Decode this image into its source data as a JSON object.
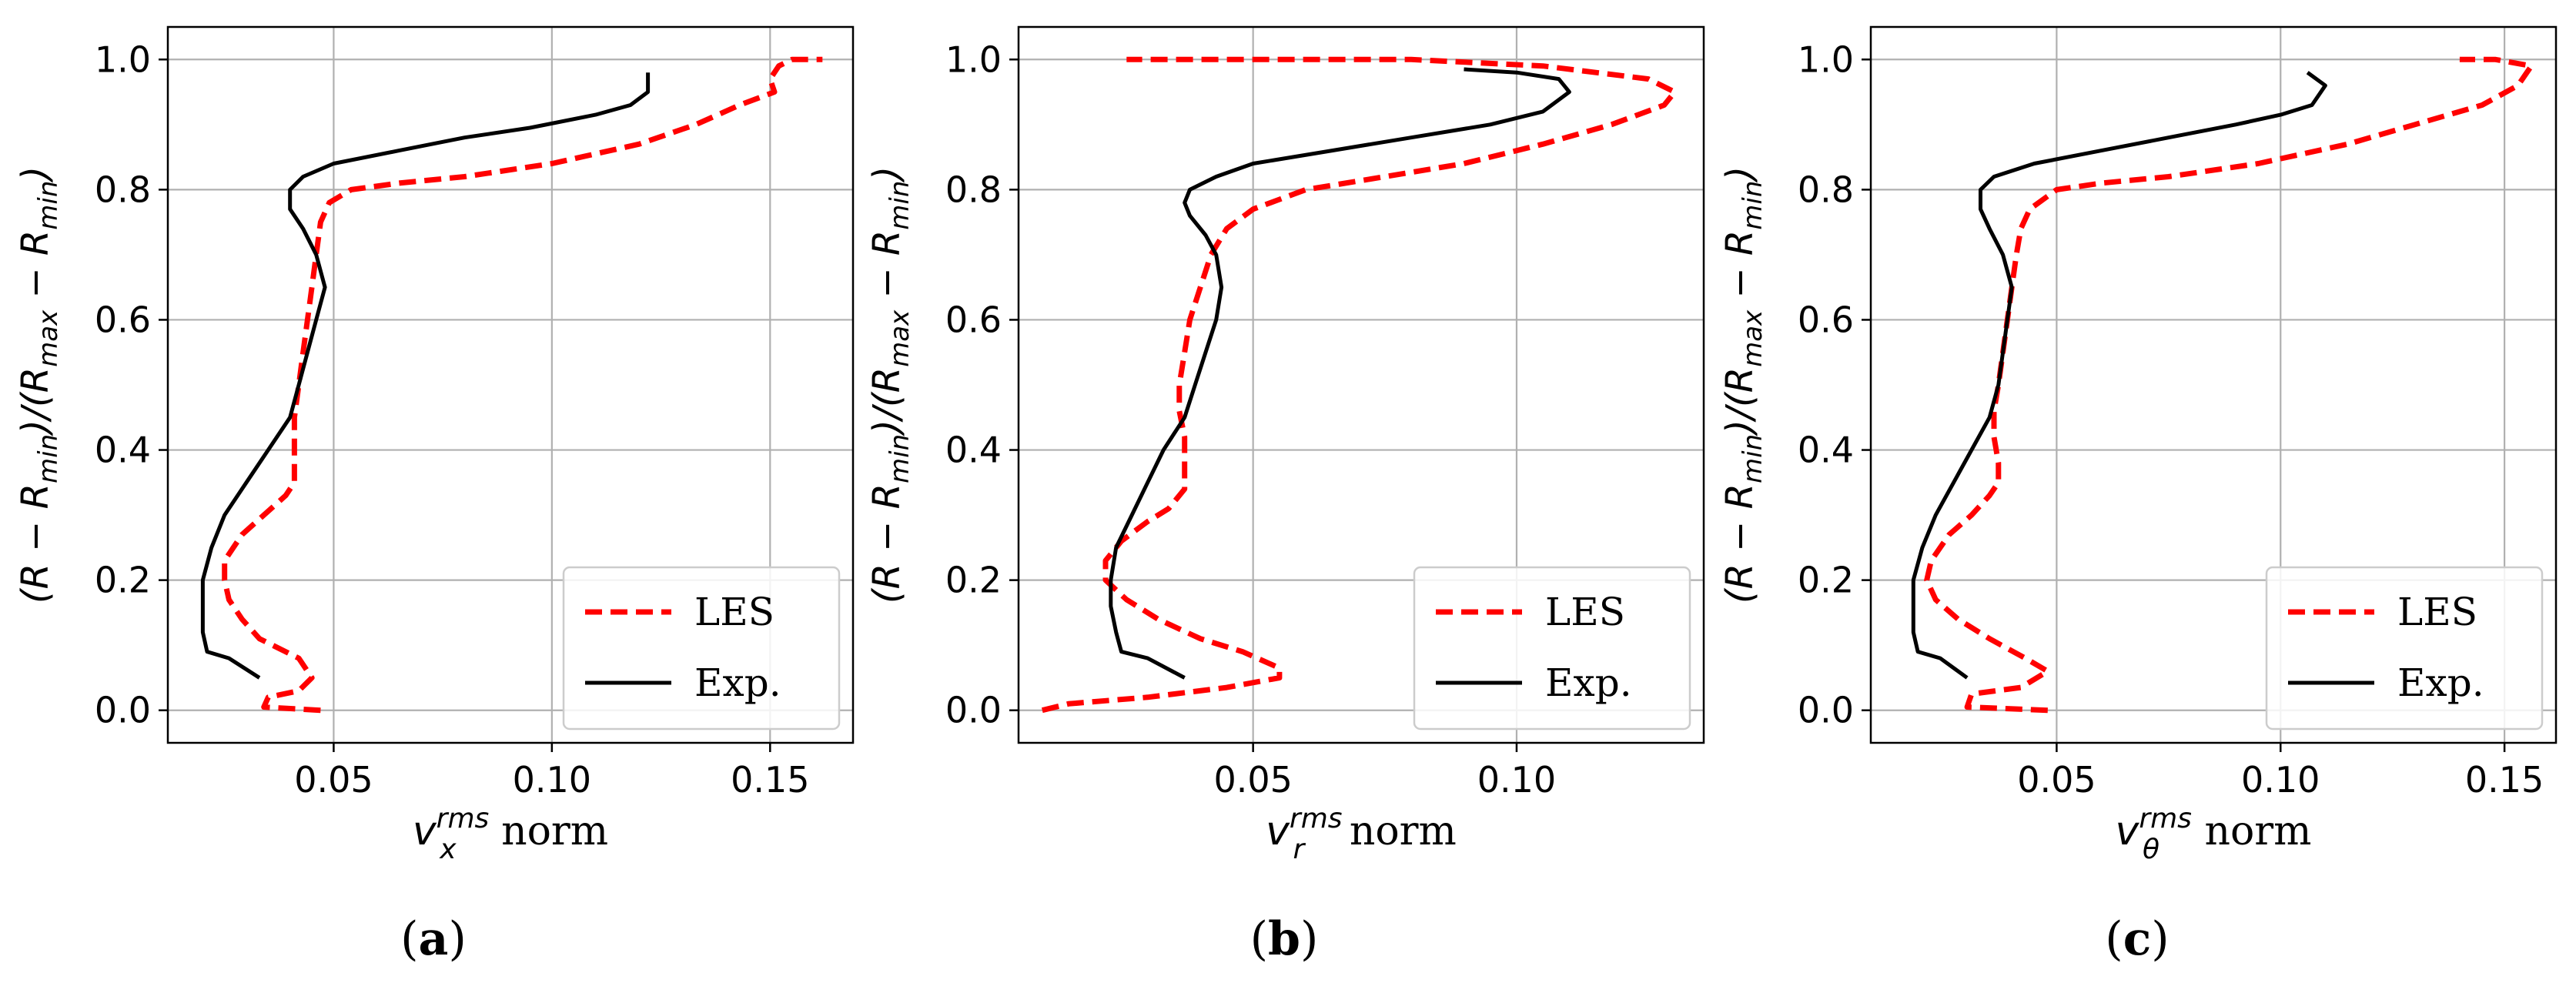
{
  "chart_data": [
    {
      "type": "line",
      "panel_label": "a",
      "caption_open": "(",
      "caption_close": ")",
      "xlabel_symbol": "v",
      "xlabel_sup": "rms",
      "xlabel_sub": "x",
      "xlabel_suffix": " norm",
      "ylabel": "(R − R_min)/(R_max − R_min)",
      "ylabel_parts": {
        "a": "(R − R",
        "a_sub": "min",
        "b": ")/(R",
        "b_sub": "max",
        "c": " − R",
        "c_sub": "min",
        "d": ")"
      },
      "xlim": [
        0.012,
        0.169
      ],
      "ylim": [
        -0.05,
        1.05
      ],
      "xticks": [
        0.05,
        0.1,
        0.15
      ],
      "xtick_labels": [
        "0.05",
        "0.10",
        "0.15"
      ],
      "yticks": [
        0.0,
        0.2,
        0.4,
        0.6,
        0.8,
        1.0
      ],
      "ytick_labels": [
        "0.0",
        "0.2",
        "0.4",
        "0.6",
        "0.8",
        "1.0"
      ],
      "grid": true,
      "legend_position": "lower-right",
      "series": [
        {
          "name": "LES",
          "style": "dashed",
          "color": "#ff0000",
          "points": [
            [
              0.047,
              0.0
            ],
            [
              0.034,
              0.005
            ],
            [
              0.035,
              0.02
            ],
            [
              0.042,
              0.03
            ],
            [
              0.045,
              0.05
            ],
            [
              0.042,
              0.08
            ],
            [
              0.033,
              0.11
            ],
            [
              0.029,
              0.14
            ],
            [
              0.026,
              0.17
            ],
            [
              0.025,
              0.2
            ],
            [
              0.025,
              0.23
            ],
            [
              0.029,
              0.27
            ],
            [
              0.034,
              0.3
            ],
            [
              0.039,
              0.33
            ],
            [
              0.041,
              0.35
            ],
            [
              0.041,
              0.38
            ],
            [
              0.041,
              0.45
            ],
            [
              0.042,
              0.5
            ],
            [
              0.043,
              0.55
            ],
            [
              0.044,
              0.6
            ],
            [
              0.045,
              0.65
            ],
            [
              0.046,
              0.7
            ],
            [
              0.047,
              0.75
            ],
            [
              0.049,
              0.78
            ],
            [
              0.054,
              0.8
            ],
            [
              0.065,
              0.81
            ],
            [
              0.08,
              0.82
            ],
            [
              0.1,
              0.84
            ],
            [
              0.12,
              0.87
            ],
            [
              0.133,
              0.9
            ],
            [
              0.143,
              0.93
            ],
            [
              0.151,
              0.95
            ],
            [
              0.15,
              0.97
            ],
            [
              0.152,
              0.99
            ],
            [
              0.155,
              1.0
            ],
            [
              0.162,
              1.0
            ]
          ]
        },
        {
          "name": "Exp.",
          "style": "solid",
          "color": "#000000",
          "points": [
            [
              0.033,
              0.05
            ],
            [
              0.026,
              0.08
            ],
            [
              0.021,
              0.09
            ],
            [
              0.02,
              0.12
            ],
            [
              0.02,
              0.16
            ],
            [
              0.02,
              0.2
            ],
            [
              0.022,
              0.25
            ],
            [
              0.025,
              0.3
            ],
            [
              0.03,
              0.35
            ],
            [
              0.035,
              0.4
            ],
            [
              0.04,
              0.45
            ],
            [
              0.042,
              0.5
            ],
            [
              0.044,
              0.55
            ],
            [
              0.046,
              0.6
            ],
            [
              0.048,
              0.65
            ],
            [
              0.046,
              0.7
            ],
            [
              0.043,
              0.74
            ],
            [
              0.04,
              0.77
            ],
            [
              0.04,
              0.8
            ],
            [
              0.043,
              0.82
            ],
            [
              0.05,
              0.84
            ],
            [
              0.065,
              0.86
            ],
            [
              0.08,
              0.88
            ],
            [
              0.095,
              0.895
            ],
            [
              0.11,
              0.915
            ],
            [
              0.118,
              0.93
            ],
            [
              0.122,
              0.95
            ],
            [
              0.122,
              0.98
            ]
          ]
        }
      ]
    },
    {
      "type": "line",
      "panel_label": "b",
      "caption_open": "(",
      "caption_close": ")",
      "xlabel_symbol": "v",
      "xlabel_sup": "rms",
      "xlabel_sub": "r",
      "xlabel_suffix": " norm",
      "ylabel": "(R − R_min)/(R_max − R_min)",
      "ylabel_parts": {
        "a": "(R − R",
        "a_sub": "min",
        "b": ")/(R",
        "b_sub": "max",
        "c": " − R",
        "c_sub": "min",
        "d": ")"
      },
      "xlim": [
        0.0055,
        0.1355
      ],
      "ylim": [
        -0.05,
        1.05
      ],
      "xticks": [
        0.05,
        0.1
      ],
      "xtick_labels": [
        "0.05",
        "0.10"
      ],
      "yticks": [
        0.0,
        0.2,
        0.4,
        0.6,
        0.8,
        1.0
      ],
      "ytick_labels": [
        "0.0",
        "0.2",
        "0.4",
        "0.6",
        "0.8",
        "1.0"
      ],
      "grid": true,
      "legend_position": "lower-right",
      "series": [
        {
          "name": "LES",
          "style": "dashed",
          "color": "#ff0000",
          "points": [
            [
              0.01,
              0.0
            ],
            [
              0.015,
              0.01
            ],
            [
              0.03,
              0.02
            ],
            [
              0.045,
              0.035
            ],
            [
              0.055,
              0.05
            ],
            [
              0.055,
              0.065
            ],
            [
              0.048,
              0.09
            ],
            [
              0.04,
              0.11
            ],
            [
              0.032,
              0.14
            ],
            [
              0.026,
              0.17
            ],
            [
              0.022,
              0.2
            ],
            [
              0.022,
              0.23
            ],
            [
              0.025,
              0.26
            ],
            [
              0.03,
              0.29
            ],
            [
              0.034,
              0.31
            ],
            [
              0.037,
              0.34
            ],
            [
              0.037,
              0.38
            ],
            [
              0.037,
              0.42
            ],
            [
              0.036,
              0.46
            ],
            [
              0.036,
              0.5
            ],
            [
              0.037,
              0.55
            ],
            [
              0.038,
              0.6
            ],
            [
              0.04,
              0.65
            ],
            [
              0.042,
              0.7
            ],
            [
              0.045,
              0.74
            ],
            [
              0.05,
              0.77
            ],
            [
              0.06,
              0.8
            ],
            [
              0.075,
              0.82
            ],
            [
              0.09,
              0.84
            ],
            [
              0.105,
              0.87
            ],
            [
              0.118,
              0.9
            ],
            [
              0.128,
              0.93
            ],
            [
              0.13,
              0.95
            ],
            [
              0.125,
              0.97
            ],
            [
              0.105,
              0.99
            ],
            [
              0.08,
              1.0
            ],
            [
              0.05,
              1.0
            ],
            [
              0.026,
              1.0
            ]
          ]
        },
        {
          "name": "Exp.",
          "style": "solid",
          "color": "#000000",
          "points": [
            [
              0.037,
              0.05
            ],
            [
              0.03,
              0.08
            ],
            [
              0.025,
              0.09
            ],
            [
              0.024,
              0.12
            ],
            [
              0.023,
              0.16
            ],
            [
              0.023,
              0.2
            ],
            [
              0.024,
              0.25
            ],
            [
              0.027,
              0.3
            ],
            [
              0.03,
              0.35
            ],
            [
              0.033,
              0.4
            ],
            [
              0.037,
              0.45
            ],
            [
              0.039,
              0.5
            ],
            [
              0.041,
              0.55
            ],
            [
              0.043,
              0.6
            ],
            [
              0.044,
              0.65
            ],
            [
              0.043,
              0.7
            ],
            [
              0.041,
              0.73
            ],
            [
              0.038,
              0.76
            ],
            [
              0.037,
              0.78
            ],
            [
              0.038,
              0.8
            ],
            [
              0.043,
              0.82
            ],
            [
              0.05,
              0.84
            ],
            [
              0.065,
              0.86
            ],
            [
              0.08,
              0.88
            ],
            [
              0.095,
              0.9
            ],
            [
              0.105,
              0.92
            ],
            [
              0.11,
              0.95
            ],
            [
              0.108,
              0.97
            ],
            [
              0.1,
              0.98
            ],
            [
              0.09,
              0.985
            ]
          ]
        }
      ]
    },
    {
      "type": "line",
      "panel_label": "c",
      "caption_open": "(",
      "caption_close": ")",
      "xlabel_symbol": "v",
      "xlabel_sup": "rms",
      "xlabel_sub": "θ",
      "xlabel_suffix": " norm",
      "ylabel": "(R − R_min)/(R_max − R_min)",
      "ylabel_parts": {
        "a": "(R − R",
        "a_sub": "min",
        "b": ")/(R",
        "b_sub": "max",
        "c": " − R",
        "c_sub": "min",
        "d": ")"
      },
      "xlim": [
        0.0085,
        0.1615
      ],
      "ylim": [
        -0.05,
        1.05
      ],
      "xticks": [
        0.05,
        0.1,
        0.15
      ],
      "xtick_labels": [
        "0.05",
        "0.10",
        "0.15"
      ],
      "yticks": [
        0.0,
        0.2,
        0.4,
        0.6,
        0.8,
        1.0
      ],
      "ytick_labels": [
        "0.0",
        "0.2",
        "0.4",
        "0.6",
        "0.8",
        "1.0"
      ],
      "grid": true,
      "legend_position": "lower-right",
      "series": [
        {
          "name": "LES",
          "style": "dashed",
          "color": "#ff0000",
          "points": [
            [
              0.048,
              0.0
            ],
            [
              0.03,
              0.005
            ],
            [
              0.031,
              0.025
            ],
            [
              0.042,
              0.035
            ],
            [
              0.048,
              0.06
            ],
            [
              0.043,
              0.08
            ],
            [
              0.035,
              0.11
            ],
            [
              0.028,
              0.14
            ],
            [
              0.023,
              0.17
            ],
            [
              0.021,
              0.2
            ],
            [
              0.022,
              0.23
            ],
            [
              0.026,
              0.27
            ],
            [
              0.031,
              0.3
            ],
            [
              0.035,
              0.33
            ],
            [
              0.037,
              0.35
            ],
            [
              0.037,
              0.38
            ],
            [
              0.036,
              0.42
            ],
            [
              0.036,
              0.46
            ],
            [
              0.037,
              0.5
            ],
            [
              0.038,
              0.55
            ],
            [
              0.039,
              0.6
            ],
            [
              0.04,
              0.65
            ],
            [
              0.041,
              0.7
            ],
            [
              0.042,
              0.74
            ],
            [
              0.044,
              0.77
            ],
            [
              0.05,
              0.8
            ],
            [
              0.06,
              0.81
            ],
            [
              0.075,
              0.82
            ],
            [
              0.095,
              0.84
            ],
            [
              0.115,
              0.87
            ],
            [
              0.13,
              0.9
            ],
            [
              0.145,
              0.93
            ],
            [
              0.153,
              0.96
            ],
            [
              0.156,
              0.99
            ],
            [
              0.148,
              1.0
            ],
            [
              0.14,
              1.0
            ]
          ]
        },
        {
          "name": "Exp.",
          "style": "solid",
          "color": "#000000",
          "points": [
            [
              0.03,
              0.05
            ],
            [
              0.024,
              0.08
            ],
            [
              0.019,
              0.09
            ],
            [
              0.018,
              0.12
            ],
            [
              0.018,
              0.16
            ],
            [
              0.018,
              0.2
            ],
            [
              0.02,
              0.25
            ],
            [
              0.023,
              0.3
            ],
            [
              0.027,
              0.35
            ],
            [
              0.031,
              0.4
            ],
            [
              0.035,
              0.45
            ],
            [
              0.037,
              0.5
            ],
            [
              0.038,
              0.55
            ],
            [
              0.039,
              0.6
            ],
            [
              0.04,
              0.65
            ],
            [
              0.038,
              0.7
            ],
            [
              0.035,
              0.74
            ],
            [
              0.033,
              0.77
            ],
            [
              0.033,
              0.8
            ],
            [
              0.036,
              0.82
            ],
            [
              0.045,
              0.84
            ],
            [
              0.06,
              0.86
            ],
            [
              0.075,
              0.88
            ],
            [
              0.09,
              0.9
            ],
            [
              0.1,
              0.915
            ],
            [
              0.107,
              0.93
            ],
            [
              0.11,
              0.96
            ],
            [
              0.106,
              0.98
            ]
          ]
        }
      ]
    }
  ]
}
